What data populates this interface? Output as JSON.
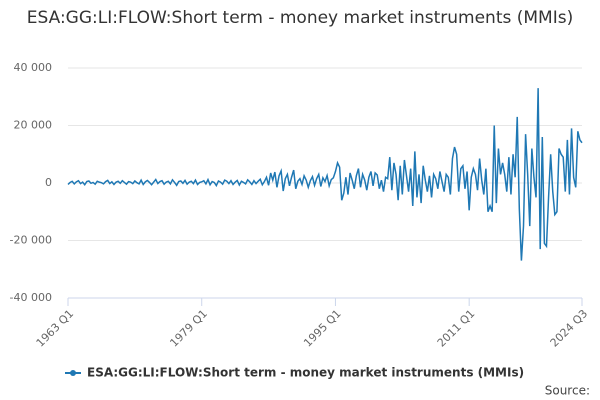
{
  "chart_data": {
    "type": "line",
    "title": "ESA:GG:LI:FLOW:Short term - money market instruments (MMIs)",
    "categories": [
      "1963 Q1",
      null,
      null,
      null,
      null,
      null,
      null,
      null,
      null,
      null,
      null,
      null,
      null,
      null,
      null,
      null,
      null,
      null,
      null,
      null,
      null,
      null,
      null,
      null,
      null,
      null,
      null,
      null,
      null,
      null,
      null,
      null,
      null,
      null,
      null,
      null,
      null,
      null,
      null,
      null,
      null,
      null,
      null,
      null,
      null,
      null,
      null,
      null,
      null,
      null,
      null,
      null,
      null,
      null,
      null,
      null,
      null,
      null,
      null,
      null,
      null,
      null,
      null,
      null,
      "1979 Q1",
      null,
      null,
      null,
      null,
      null,
      null,
      null,
      null,
      null,
      null,
      null,
      null,
      null,
      null,
      null,
      null,
      null,
      null,
      null,
      null,
      null,
      null,
      null,
      null,
      null,
      null,
      null,
      null,
      null,
      null,
      null,
      null,
      null,
      null,
      null,
      null,
      null,
      null,
      null,
      null,
      null,
      null,
      null,
      null,
      null,
      null,
      null,
      null,
      null,
      null,
      null,
      null,
      null,
      null,
      null,
      null,
      null,
      null,
      null,
      null,
      null,
      null,
      null,
      "1995 Q1",
      null,
      null,
      null,
      null,
      null,
      null,
      null,
      null,
      null,
      null,
      null,
      null,
      null,
      null,
      null,
      null,
      null,
      null,
      null,
      null,
      null,
      null,
      null,
      null,
      null,
      null,
      null,
      null,
      null,
      null,
      null,
      null,
      null,
      null,
      null,
      null,
      null,
      null,
      null,
      null,
      null,
      null,
      null,
      null,
      null,
      null,
      null,
      null,
      null,
      null,
      null,
      null,
      null,
      null,
      null,
      null,
      null,
      null,
      null,
      null,
      null,
      null,
      null,
      "2011 Q1",
      null,
      null,
      null,
      null,
      null,
      null,
      null,
      null,
      null,
      null,
      null,
      null,
      null,
      null,
      null,
      null,
      null,
      null,
      null,
      null,
      null,
      null,
      null,
      null,
      null,
      null,
      null,
      null,
      null,
      null,
      null,
      null,
      null,
      null,
      null,
      null,
      null,
      null,
      null,
      null,
      null,
      null,
      null,
      null,
      null,
      null,
      null,
      null,
      null,
      null,
      null,
      null,
      null,
      "2024 Q3"
    ],
    "series": [
      {
        "name": "ESA:GG:LI:FLOW:Short term - money market instruments (MMIs)",
        "color": "#1f78b4",
        "values": [
          -500,
          200,
          600,
          -300,
          400,
          800,
          -200,
          300,
          -600,
          500,
          700,
          -100,
          200,
          -400,
          600,
          300,
          100,
          -300,
          500,
          900,
          -200,
          400,
          -500,
          300,
          600,
          -100,
          800,
          200,
          -400,
          500,
          300,
          -200,
          700,
          100,
          -300,
          1000,
          -500,
          400,
          900,
          200,
          -600,
          300,
          1200,
          -200,
          500,
          800,
          -400,
          300,
          600,
          -300,
          1100,
          200,
          -800,
          500,
          700,
          -100,
          900,
          -400,
          300,
          600,
          -200,
          1000,
          -500,
          200,
          400,
          800,
          -300,
          1200,
          -600,
          500,
          200,
          -900,
          700,
          300,
          -400,
          1000,
          600,
          -200,
          800,
          -500,
          300,
          900,
          -700,
          600,
          200,
          -300,
          1100,
          400,
          -500,
          800,
          -200,
          600,
          1300,
          -600,
          500,
          2000,
          -800,
          3500,
          1000,
          3800,
          -1500,
          2500,
          4200,
          -2800,
          1500,
          3000,
          -1000,
          2000,
          4500,
          -2000,
          600,
          1500,
          -500,
          2500,
          1000,
          -1500,
          800,
          2200,
          -800,
          1500,
          3000,
          -1200,
          1800,
          500,
          2600,
          -1000,
          1200,
          1800,
          4000,
          7000,
          5500,
          -6000,
          -3500,
          2000,
          -4000,
          3500,
          1000,
          -2000,
          2500,
          5000,
          -1500,
          3000,
          1000,
          -2500,
          2000,
          4000,
          -1000,
          3500,
          2800,
          -2000,
          1000,
          -3000,
          2000,
          1500,
          9000,
          -2500,
          7000,
          3000,
          -6000,
          6000,
          -4000,
          8000,
          2500,
          -3000,
          5000,
          -8000,
          11000,
          -5000,
          3000,
          -7000,
          6000,
          1000,
          -3000,
          2500,
          -5000,
          3000,
          1500,
          -2000,
          4000,
          500,
          -3000,
          3000,
          2000,
          -4000,
          8500,
          12500,
          10000,
          -3000,
          5000,
          6000,
          -2000,
          4000,
          -9500,
          2000,
          5000,
          3000,
          -2500,
          8500,
          1000,
          -4000,
          5000,
          -10000,
          -8000,
          -10000,
          20000,
          -7000,
          12000,
          3000,
          7000,
          3000,
          -3000,
          9000,
          -4000,
          10000,
          2000,
          23000,
          -9000,
          -27000,
          -15000,
          17000,
          3000,
          -15000,
          12000,
          2000,
          -5000,
          33000,
          -23000,
          16000,
          -21000,
          -22000,
          -5000,
          10000,
          -3000,
          -11000,
          -10000,
          12000,
          10000,
          9000,
          -3000,
          15000,
          -4000,
          19000,
          2000,
          -1500,
          18000,
          15000,
          14000
        ]
      }
    ],
    "ylim": [
      -40000,
      40000
    ],
    "yticks": [
      {
        "value": -40000,
        "label": "-40 000"
      },
      {
        "value": -20000,
        "label": "-20 000"
      },
      0,
      {
        "value": 20000,
        "label": "20 000"
      },
      {
        "value": 40000,
        "label": "40 000"
      }
    ],
    "grid": true,
    "legend": "bottom",
    "source": "Source:"
  }
}
